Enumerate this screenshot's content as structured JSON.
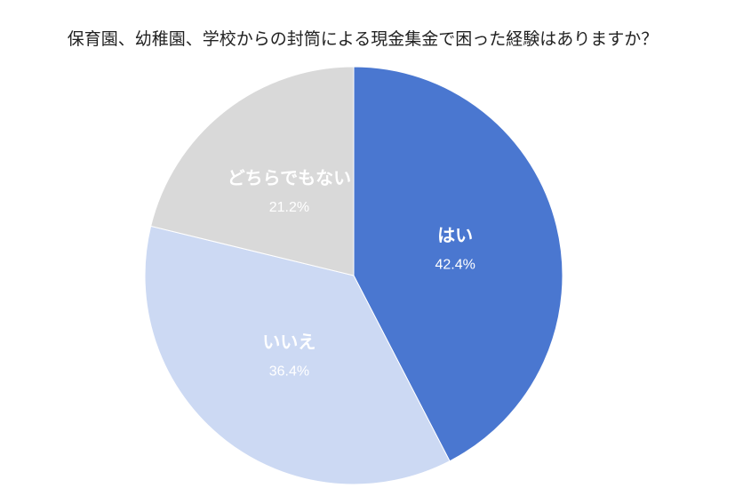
{
  "chart_data": {
    "type": "pie",
    "title": "保育園、幼稚園、学校からの封筒による現金集金で困った経験はありますか？",
    "categories": [
      "はい",
      "いいえ",
      "どちらでもない"
    ],
    "values": [
      42.4,
      36.4,
      21.2
    ],
    "value_labels": [
      "42.4%",
      "36.4%",
      "21.2%"
    ],
    "colors": [
      "#4a77d0",
      "#ccd9f3",
      "#d9d9d9"
    ]
  }
}
